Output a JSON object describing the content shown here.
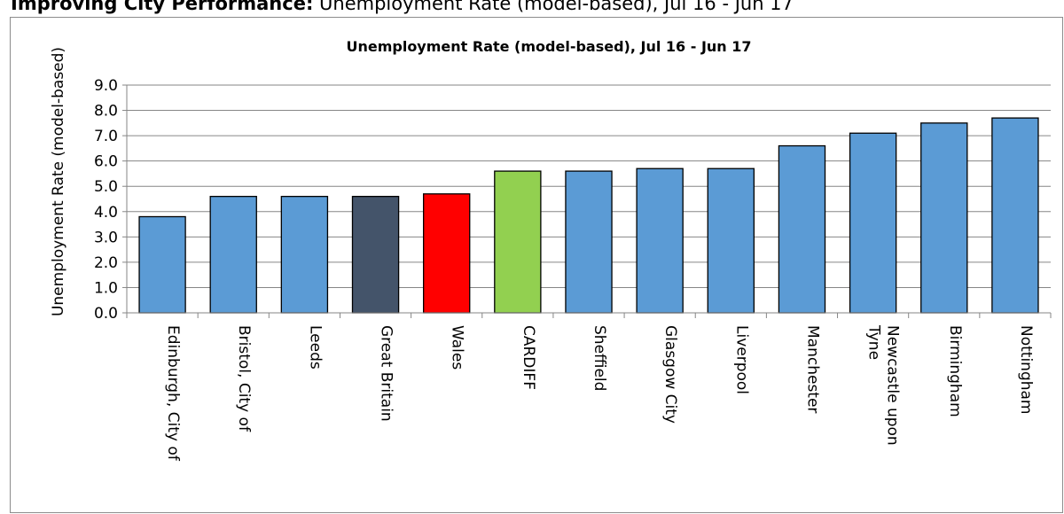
{
  "page": {
    "heading_bold": "Improving City Performance:",
    "heading_rest": " Unemployment Rate (model-based), Jul 16 - Jun 17"
  },
  "chart_data": {
    "type": "bar",
    "title": "Unemployment Rate (model-based), Jul 16 - Jun 17",
    "xlabel": "",
    "ylabel": "Unemployment Rate (model-based)",
    "ylim": [
      0,
      9
    ],
    "yticks": [
      "0.0",
      "1.0",
      "2.0",
      "3.0",
      "4.0",
      "5.0",
      "6.0",
      "7.0",
      "8.0",
      "9.0"
    ],
    "grid": true,
    "categories": [
      [
        "Edinburgh, City of"
      ],
      [
        "Bristol, City of"
      ],
      [
        "Leeds"
      ],
      [
        "Great Britain"
      ],
      [
        "Wales"
      ],
      [
        "CARDIFF"
      ],
      [
        "Sheffield"
      ],
      [
        "Glasgow City"
      ],
      [
        "Liverpool"
      ],
      [
        "Manchester"
      ],
      [
        "Newcastle upon",
        "Tyne"
      ],
      [
        "Birmingham"
      ],
      [
        "Nottingham"
      ]
    ],
    "values": [
      3.8,
      4.6,
      4.6,
      4.6,
      4.7,
      5.6,
      5.6,
      5.7,
      5.7,
      6.6,
      7.1,
      7.5,
      7.7
    ],
    "colors": [
      "#5b9bd5",
      "#5b9bd5",
      "#5b9bd5",
      "#44546a",
      "#ff0000",
      "#92d050",
      "#5b9bd5",
      "#5b9bd5",
      "#5b9bd5",
      "#5b9bd5",
      "#5b9bd5",
      "#5b9bd5",
      "#5b9bd5"
    ],
    "gridline_color": "#868686",
    "bar_edge_color": "#000000"
  }
}
